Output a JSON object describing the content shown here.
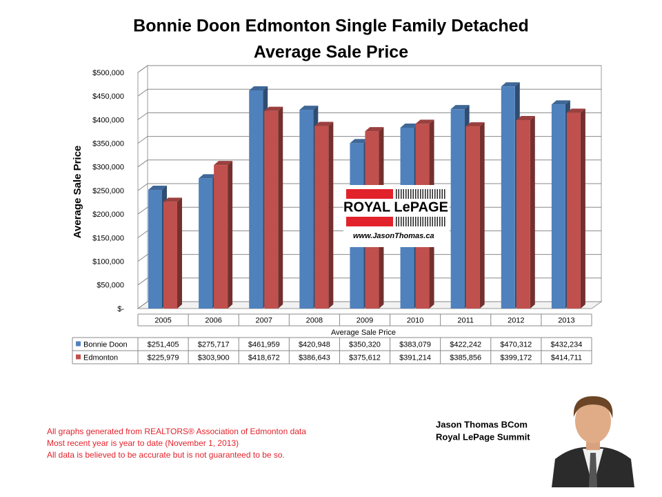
{
  "chart_data": {
    "type": "bar",
    "title": "Bonnie Doon Edmonton Single Family Detached",
    "subtitle": "Average Sale Price",
    "ylabel": "Average Sale Price",
    "xlabel": "Average Sale Price",
    "categories": [
      "2005",
      "2006",
      "2007",
      "2008",
      "2009",
      "2010",
      "2011",
      "2012",
      "2013"
    ],
    "series": [
      {
        "name": "Bonnie Doon",
        "color": "#4f81bd",
        "values": [
          251405,
          275717,
          461959,
          420948,
          350320,
          383079,
          422242,
          470312,
          432234
        ],
        "value_labels": [
          "$251,405",
          "$275,717",
          "$461,959",
          "$420,948",
          "$350,320",
          "$383,079",
          "$422,242",
          "$470,312",
          "$432,234"
        ]
      },
      {
        "name": "Edmonton",
        "color": "#c0504d",
        "values": [
          225979,
          303900,
          418672,
          386643,
          375612,
          391214,
          385856,
          399172,
          414711
        ],
        "value_labels": [
          "$225,979",
          "$303,900",
          "$418,672",
          "$386,643",
          "$375,612",
          "$391,214",
          "$385,856",
          "$399,172",
          "$414,711"
        ]
      }
    ],
    "ylim": [
      0,
      500000
    ],
    "yticks": [
      {
        "value": 0,
        "label": "$-"
      },
      {
        "value": 50000,
        "label": "$50,000"
      },
      {
        "value": 100000,
        "label": "$100,000"
      },
      {
        "value": 150000,
        "label": "$150,000"
      },
      {
        "value": 200000,
        "label": "$200,000"
      },
      {
        "value": 250000,
        "label": "$250,000"
      },
      {
        "value": 300000,
        "label": "$300,000"
      },
      {
        "value": 350000,
        "label": "$350,000"
      },
      {
        "value": 400000,
        "label": "$400,000"
      },
      {
        "value": 450000,
        "label": "$450,000"
      },
      {
        "value": 500000,
        "label": "$500,000"
      }
    ],
    "grid": true
  },
  "logo": {
    "brand": "ROYAL LePAGE",
    "url": "www.JasonThomas.ca"
  },
  "notes": [
    "All graphs generated from REALTORS® Association of Edmonton data",
    "Most recent year is year to date (November 1, 2013)",
    "All data is believed to be accurate but is not guaranteed to be so."
  ],
  "author": [
    "Jason Thomas BCom",
    "Royal LePage Summit"
  ]
}
